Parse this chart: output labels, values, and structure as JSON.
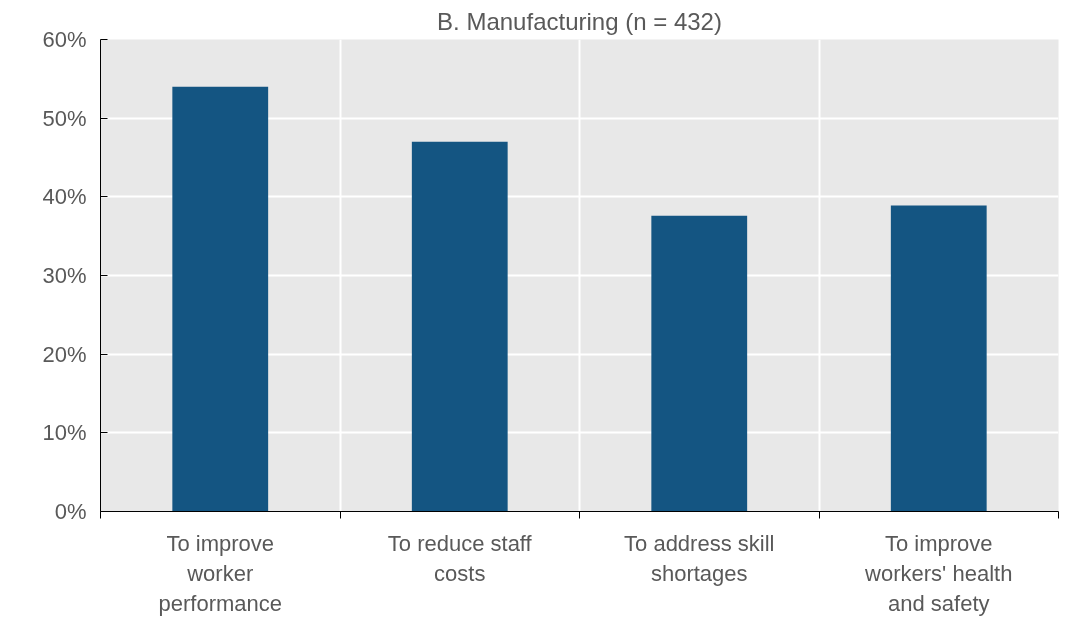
{
  "chart_data": {
    "type": "bar",
    "title": "B. Manufacturing (n = 432)",
    "categories": [
      "To improve worker performance",
      "To reduce staff costs",
      "To address skill shortages",
      "To improve workers' health and safety"
    ],
    "values": [
      54,
      47,
      37.6,
      38.9
    ],
    "color": "#145582",
    "ylim": [
      0,
      60
    ],
    "yticks": [
      {
        "value": 0,
        "label": "0%"
      },
      {
        "value": 10,
        "label": "10%"
      },
      {
        "value": 20,
        "label": "20%"
      },
      {
        "value": 30,
        "label": "30%"
      },
      {
        "value": 40,
        "label": "40%"
      },
      {
        "value": 50,
        "label": "50%"
      },
      {
        "value": 60,
        "label": "60%"
      }
    ],
    "grid": true
  }
}
